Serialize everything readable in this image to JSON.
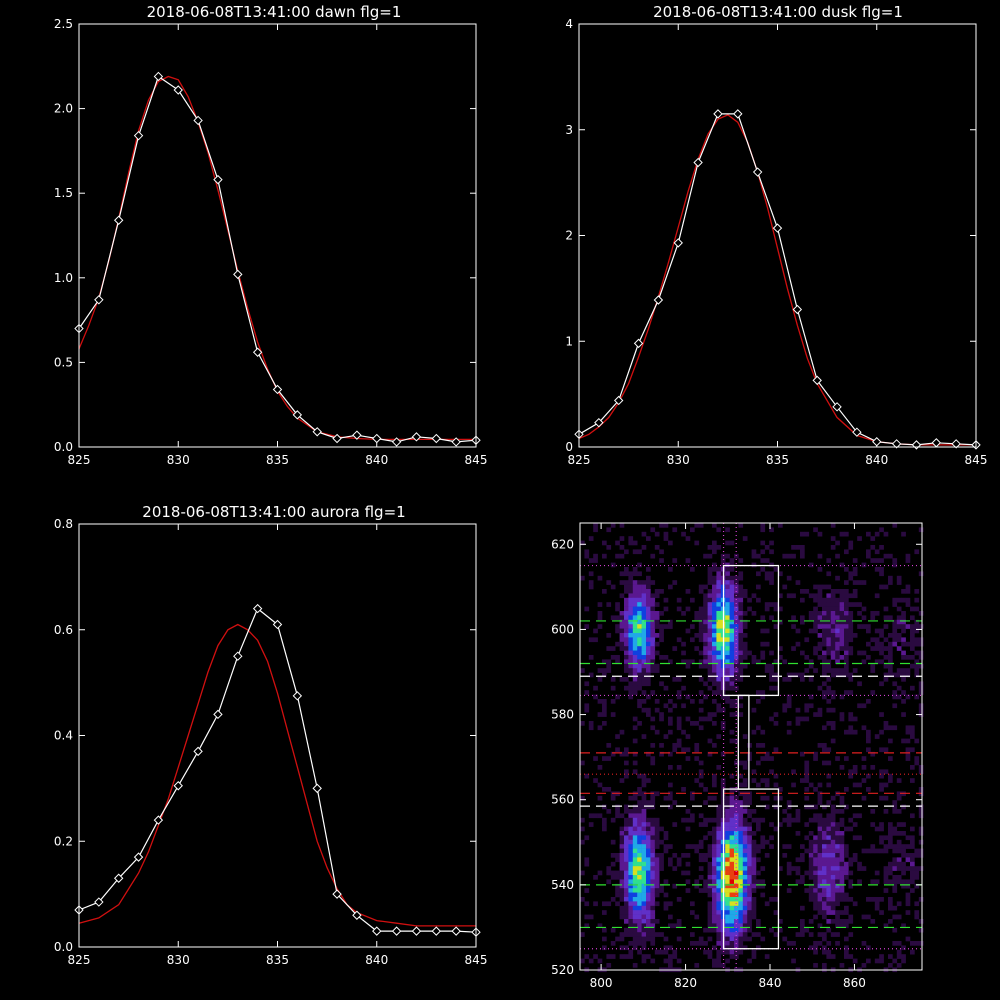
{
  "chart_data": [
    {
      "type": "line",
      "title": "2018-06-08T13:41:00 dawn flg=1",
      "xlim": [
        825,
        845
      ],
      "ylim": [
        0,
        2.5
      ],
      "xticks": [
        825,
        830,
        835,
        840,
        845
      ],
      "yticks": [
        0.0,
        0.5,
        1.0,
        1.5,
        2.0,
        2.5
      ],
      "ytick_labels": [
        "0.0",
        "0.5",
        "1.0",
        "1.5",
        "2.0",
        "2.5"
      ],
      "series": [
        {
          "color": "#ffffff",
          "marker": "diamond",
          "x": [
            825,
            826,
            827,
            828,
            829,
            830,
            831,
            832,
            833,
            834,
            835,
            836,
            837,
            838,
            839,
            840,
            841,
            842,
            843,
            844,
            845
          ],
          "y": [
            0.7,
            0.87,
            1.34,
            1.84,
            2.19,
            2.11,
            1.93,
            1.58,
            1.02,
            0.56,
            0.34,
            0.19,
            0.09,
            0.05,
            0.07,
            0.05,
            0.03,
            0.06,
            0.05,
            0.03,
            0.04
          ]
        },
        {
          "color": "#d01010",
          "x": [
            825,
            825.5,
            826,
            826.5,
            827,
            827.5,
            828,
            828.5,
            829,
            829.5,
            830,
            830.5,
            831,
            831.5,
            832,
            832.5,
            833,
            833.5,
            834,
            834.5,
            835,
            835.5,
            836,
            837,
            838,
            839,
            840,
            841,
            842,
            843,
            844,
            845
          ],
          "y": [
            0.58,
            0.72,
            0.88,
            1.1,
            1.35,
            1.62,
            1.87,
            2.05,
            2.16,
            2.19,
            2.17,
            2.07,
            1.92,
            1.74,
            1.52,
            1.28,
            1.04,
            0.82,
            0.62,
            0.46,
            0.33,
            0.24,
            0.17,
            0.09,
            0.06,
            0.05,
            0.045,
            0.045,
            0.045,
            0.045,
            0.045,
            0.045
          ]
        }
      ]
    },
    {
      "type": "line",
      "title": "2018-06-08T13:41:00 dusk flg=1",
      "xlim": [
        825,
        845
      ],
      "ylim": [
        0,
        4
      ],
      "xticks": [
        825,
        830,
        835,
        840,
        845
      ],
      "yticks": [
        0,
        1,
        2,
        3,
        4
      ],
      "ytick_labels": [
        "0",
        "1",
        "2",
        "3",
        "4"
      ],
      "series": [
        {
          "color": "#ffffff",
          "marker": "diamond",
          "x": [
            825,
            826,
            827,
            828,
            829,
            830,
            831,
            832,
            833,
            834,
            835,
            836,
            837,
            838,
            839,
            840,
            841,
            842,
            843,
            844,
            845
          ],
          "y": [
            0.12,
            0.23,
            0.44,
            0.98,
            1.39,
            1.93,
            2.69,
            3.15,
            3.15,
            2.6,
            2.07,
            1.3,
            0.63,
            0.38,
            0.14,
            0.05,
            0.03,
            0.02,
            0.04,
            0.03,
            0.02
          ]
        },
        {
          "color": "#d01010",
          "x": [
            825,
            825.5,
            826,
            826.5,
            827,
            827.5,
            828,
            828.5,
            829,
            829.5,
            830,
            830.5,
            831,
            831.5,
            832,
            832.5,
            833,
            833.5,
            834,
            834.5,
            835,
            835.5,
            836,
            836.5,
            837,
            838,
            839,
            840,
            841,
            842,
            843,
            844,
            845
          ],
          "y": [
            0.08,
            0.12,
            0.19,
            0.28,
            0.42,
            0.6,
            0.85,
            1.12,
            1.42,
            1.74,
            2.08,
            2.42,
            2.72,
            2.96,
            3.1,
            3.14,
            3.07,
            2.88,
            2.6,
            2.26,
            1.88,
            1.5,
            1.15,
            0.84,
            0.6,
            0.28,
            0.11,
            0.05,
            0.03,
            0.02,
            0.02,
            0.02,
            0.02
          ]
        }
      ]
    },
    {
      "type": "line",
      "title": "2018-06-08T13:41:00 aurora flg=1",
      "xlim": [
        825,
        845
      ],
      "ylim": [
        0,
        0.8
      ],
      "xticks": [
        825,
        830,
        835,
        840,
        845
      ],
      "yticks": [
        0.0,
        0.2,
        0.4,
        0.6,
        0.8
      ],
      "ytick_labels": [
        "0.0",
        "0.2",
        "0.4",
        "0.6",
        "0.8"
      ],
      "series": [
        {
          "color": "#ffffff",
          "marker": "diamond",
          "x": [
            825,
            826,
            827,
            828,
            829,
            830,
            831,
            832,
            833,
            834,
            835,
            836,
            837,
            838,
            839,
            840,
            841,
            842,
            843,
            844,
            845
          ],
          "y": [
            0.07,
            0.085,
            0.13,
            0.17,
            0.24,
            0.305,
            0.37,
            0.44,
            0.55,
            0.64,
            0.61,
            0.475,
            0.3,
            0.1,
            0.06,
            0.03,
            0.03,
            0.03,
            0.03,
            0.03,
            0.028
          ]
        },
        {
          "color": "#d01010",
          "x": [
            825,
            826,
            827,
            828,
            828.5,
            829,
            829.5,
            830,
            830.5,
            831,
            831.5,
            832,
            832.5,
            833,
            833.5,
            834,
            834.5,
            835,
            835.5,
            836,
            836.5,
            837,
            837.5,
            838,
            838.5,
            839,
            840,
            841,
            842,
            843,
            844,
            845
          ],
          "y": [
            0.045,
            0.055,
            0.08,
            0.14,
            0.18,
            0.23,
            0.28,
            0.34,
            0.4,
            0.46,
            0.52,
            0.57,
            0.6,
            0.61,
            0.6,
            0.58,
            0.54,
            0.48,
            0.41,
            0.34,
            0.27,
            0.2,
            0.15,
            0.11,
            0.08,
            0.065,
            0.05,
            0.045,
            0.04,
            0.04,
            0.04,
            0.04
          ]
        }
      ]
    },
    {
      "type": "heatmap",
      "xlim": [
        795,
        876
      ],
      "ylim": [
        520,
        625
      ],
      "xticks": [
        800,
        820,
        840,
        860
      ],
      "yticks": [
        520,
        540,
        560,
        580,
        600,
        620
      ],
      "colormap": [
        "#000000",
        "#2a0a40",
        "#5a1890",
        "#6030c8",
        "#1040e0",
        "#20a8e8",
        "#30e090",
        "#d8e020",
        "#e84010",
        "#e00000"
      ],
      "blobs": [
        {
          "x": 809,
          "y": 600,
          "sx": 2.3,
          "sy": 6.5,
          "amp": 0.68
        },
        {
          "x": 829,
          "y": 600,
          "sx": 2.4,
          "sy": 7.5,
          "amp": 0.78
        },
        {
          "x": 855,
          "y": 600,
          "sx": 3.0,
          "sy": 6.0,
          "amp": 0.24
        },
        {
          "x": 871,
          "y": 598,
          "sx": 3.0,
          "sy": 6.0,
          "amp": 0.12
        },
        {
          "x": 809,
          "y": 543,
          "sx": 2.4,
          "sy": 8.0,
          "amp": 0.76
        },
        {
          "x": 831,
          "y": 542,
          "sx": 2.7,
          "sy": 9.0,
          "amp": 0.96
        },
        {
          "x": 854,
          "y": 544,
          "sx": 2.8,
          "sy": 8.0,
          "amp": 0.32
        },
        {
          "x": 872,
          "y": 545,
          "sx": 3.0,
          "sy": 7.0,
          "amp": 0.12
        }
      ],
      "overlays": [
        {
          "kind": "hline",
          "y": 615,
          "color": "#d040d0",
          "dash": "dotted"
        },
        {
          "kind": "hline",
          "y": 602,
          "color": "#30e030",
          "dash": "dashed"
        },
        {
          "kind": "hline",
          "y": 592,
          "color": "#30e030",
          "dash": "dashed"
        },
        {
          "kind": "hline",
          "y": 589,
          "color": "#ffffff",
          "dash": "dashed"
        },
        {
          "kind": "hline",
          "y": 584.5,
          "color": "#d040d0",
          "dash": "dotted"
        },
        {
          "kind": "hline",
          "y": 571,
          "color": "#e02020",
          "dash": "dashed"
        },
        {
          "kind": "hline",
          "y": 566,
          "color": "#e02020",
          "dash": "dotted"
        },
        {
          "kind": "hline",
          "y": 561.5,
          "color": "#e02020",
          "dash": "dashed"
        },
        {
          "kind": "hline",
          "y": 558.5,
          "color": "#ffffff",
          "dash": "dashed"
        },
        {
          "kind": "hline",
          "y": 540,
          "color": "#30e030",
          "dash": "dashed"
        },
        {
          "kind": "hline",
          "y": 530,
          "color": "#30e030",
          "dash": "dashed"
        },
        {
          "kind": "hline",
          "y": 525,
          "color": "#d040d0",
          "dash": "dotted"
        },
        {
          "kind": "vline",
          "x": 829,
          "color": "#d040d0",
          "dash": "dotted"
        },
        {
          "kind": "vline",
          "x": 832,
          "color": "#d040d0",
          "dash": "dotted"
        }
      ],
      "boxes": [
        {
          "x0": 829,
          "x1": 842,
          "y0": 584.5,
          "y1": 615
        },
        {
          "x0": 832.5,
          "x1": 835,
          "y0": 562.5,
          "y1": 584.5
        },
        {
          "x0": 829,
          "x1": 842,
          "y0": 525,
          "y1": 562.5
        }
      ]
    }
  ]
}
